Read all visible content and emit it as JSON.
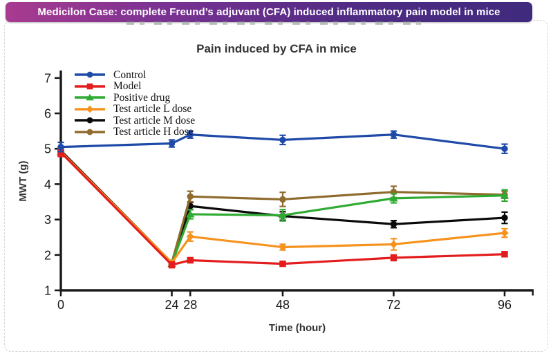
{
  "banner": {
    "text": "Medicilon Case: complete Freund’s adjuvant (CFA) induced inflammatory pain model in mice",
    "gradient_left": "#a83b90",
    "gradient_right": "#3f2a7e"
  },
  "chart_data": {
    "type": "line",
    "title": "Pain induced by CFA in mice",
    "xlabel": "Time (hour)",
    "ylabel": "MWT (g)",
    "x": [
      0,
      24,
      28,
      48,
      72,
      96
    ],
    "xticks": [
      0,
      24,
      28,
      48,
      72,
      96
    ],
    "yticks": [
      1,
      2,
      3,
      4,
      5,
      6,
      7
    ],
    "xlim": [
      0,
      102
    ],
    "ylim": [
      1,
      7
    ],
    "grid": false,
    "error_bars": true,
    "legend_position": "top-left",
    "axis_color": "#1a1a1a",
    "series": [
      {
        "name": "Control",
        "color": "#1f4aa8",
        "marker": "circle",
        "values": [
          5.05,
          5.15,
          5.4,
          5.25,
          5.4,
          5.0
        ],
        "errors": [
          0.13,
          0.1,
          0.1,
          0.13,
          0.1,
          0.13
        ]
      },
      {
        "name": "Model",
        "color": "#e31d1d",
        "marker": "square",
        "values": [
          4.9,
          1.72,
          1.85,
          1.75,
          1.92,
          2.02
        ],
        "errors": [
          0.12,
          0.08,
          0.07,
          0.06,
          0.08,
          0.07
        ]
      },
      {
        "name": "Positive drug",
        "color": "#2fab33",
        "marker": "triangle",
        "values": [
          4.9,
          1.75,
          3.15,
          3.12,
          3.6,
          3.68
        ],
        "errors": [
          0.1,
          0.06,
          0.13,
          0.16,
          0.13,
          0.16
        ]
      },
      {
        "name": "Test article L dose",
        "color": "#f6921e",
        "marker": "diamond",
        "values": [
          4.92,
          1.78,
          2.52,
          2.22,
          2.3,
          2.62
        ],
        "errors": [
          0.1,
          0.06,
          0.13,
          0.08,
          0.16,
          0.12
        ]
      },
      {
        "name": "Test article M dose",
        "color": "#0a0a0a",
        "marker": "circle",
        "values": [
          4.95,
          1.78,
          3.38,
          3.1,
          2.87,
          3.05
        ],
        "errors": [
          0.1,
          0.06,
          0.1,
          0.12,
          0.1,
          0.16
        ]
      },
      {
        "name": "Test article H dose",
        "color": "#8f6b2d",
        "marker": "circle",
        "values": [
          4.9,
          1.78,
          3.65,
          3.57,
          3.78,
          3.7
        ],
        "errors": [
          0.1,
          0.06,
          0.15,
          0.2,
          0.16,
          0.1
        ]
      }
    ],
    "z_order": [
      4,
      5,
      2,
      3,
      1,
      0
    ]
  }
}
